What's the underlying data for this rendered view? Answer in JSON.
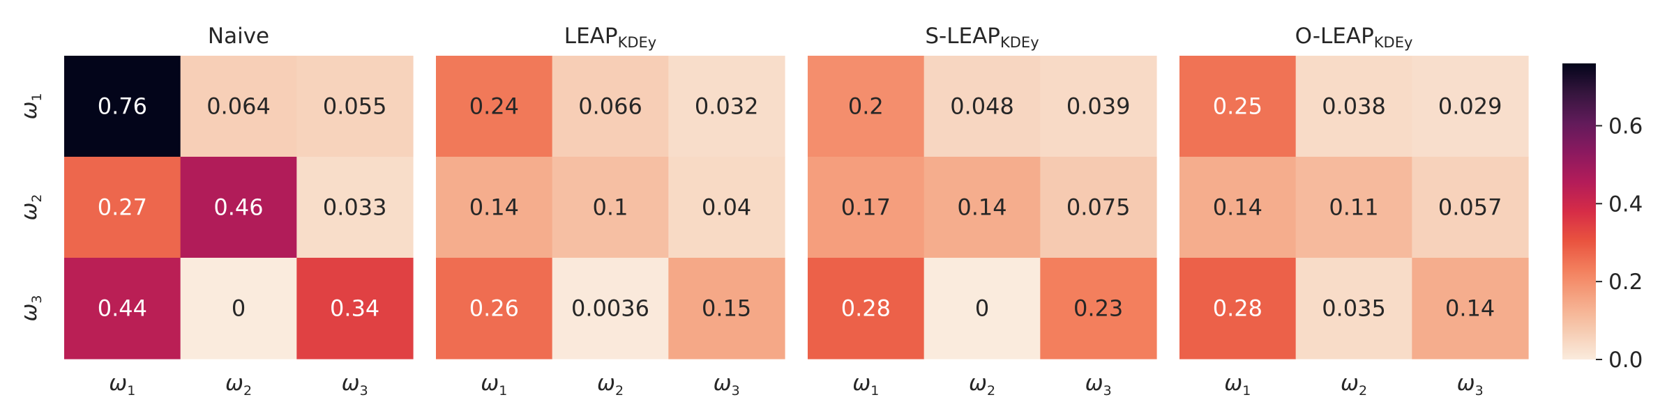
{
  "chart_data": {
    "type": "heatmap",
    "colorscale": {
      "name": "rocket_r",
      "vmin": 0,
      "vmax": 0.76,
      "ticks": [
        "0.0",
        "0.2",
        "0.4",
        "0.6"
      ],
      "tick_values": [
        0,
        0.2,
        0.4,
        0.6
      ]
    },
    "row_labels": [
      "ω1",
      "ω2",
      "ω3"
    ],
    "col_labels": [
      "ω1",
      "ω2",
      "ω3"
    ],
    "panels": [
      {
        "title": "Naive",
        "subscript": "",
        "values": [
          [
            0.76,
            0.064,
            0.055
          ],
          [
            0.27,
            0.46,
            0.033
          ],
          [
            0.44,
            0,
            0.34
          ]
        ],
        "labels": [
          [
            "0.76",
            "0.064",
            "0.055"
          ],
          [
            "0.27",
            "0.46",
            "0.033"
          ],
          [
            "0.44",
            "0",
            "0.34"
          ]
        ]
      },
      {
        "title": "LEAP",
        "subscript": "KDEy",
        "values": [
          [
            0.24,
            0.066,
            0.032
          ],
          [
            0.14,
            0.1,
            0.04
          ],
          [
            0.26,
            0.0036,
            0.15
          ]
        ],
        "labels": [
          [
            "0.24",
            "0.066",
            "0.032"
          ],
          [
            "0.14",
            "0.1",
            "0.04"
          ],
          [
            "0.26",
            "0.0036",
            "0.15"
          ]
        ]
      },
      {
        "title": "S-LEAP",
        "subscript": "KDEy",
        "values": [
          [
            0.2,
            0.048,
            0.039
          ],
          [
            0.17,
            0.14,
            0.075
          ],
          [
            0.28,
            0,
            0.23
          ]
        ],
        "labels": [
          [
            "0.2",
            "0.048",
            "0.039"
          ],
          [
            "0.17",
            "0.14",
            "0.075"
          ],
          [
            "0.28",
            "0",
            "0.23"
          ]
        ]
      },
      {
        "title": "O-LEAP",
        "subscript": "KDEy",
        "values": [
          [
            0.25,
            0.038,
            0.029
          ],
          [
            0.14,
            0.11,
            0.057
          ],
          [
            0.28,
            0.035,
            0.14
          ]
        ],
        "labels": [
          [
            "0.25",
            "0.038",
            "0.029"
          ],
          [
            "0.14",
            "0.11",
            "0.057"
          ],
          [
            "0.28",
            "0.035",
            "0.14"
          ]
        ]
      }
    ]
  }
}
